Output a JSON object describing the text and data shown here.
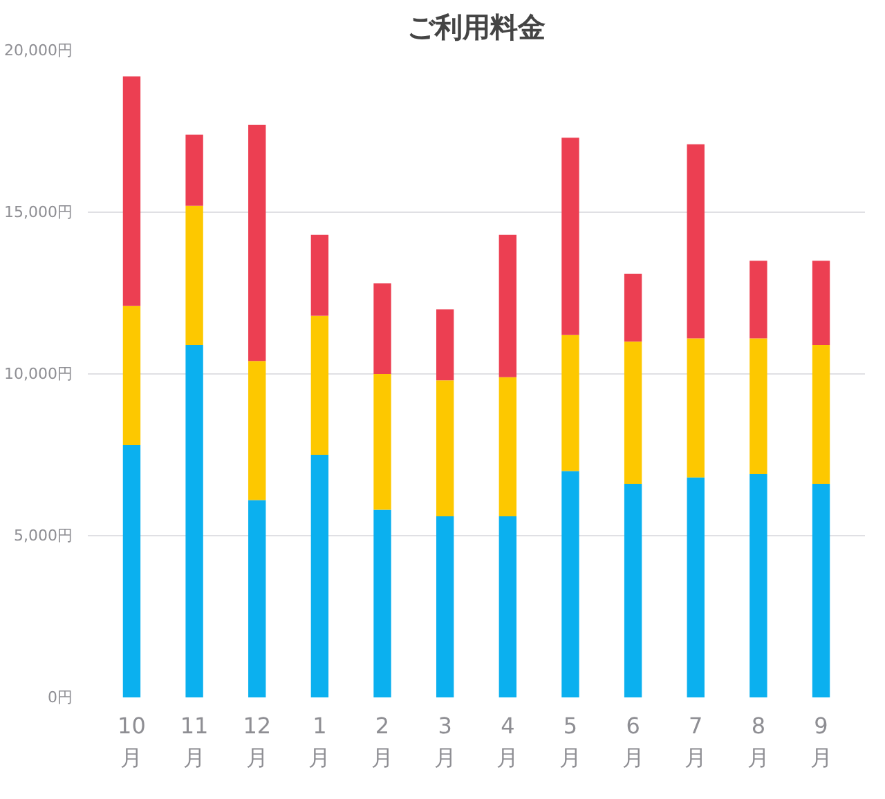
{
  "chart_data": {
    "type": "bar",
    "title": "ご利用料金",
    "stacked": true,
    "categories": [
      "10\n月",
      "11\n月",
      "12\n月",
      "1\n月",
      "2\n月",
      "3\n月",
      "4\n月",
      "5\n月",
      "6\n月",
      "7\n月",
      "8\n月",
      "9\n月"
    ],
    "series": [
      {
        "color": "#0bb0ef",
        "values": [
          7800,
          10900,
          6100,
          7500,
          5800,
          5600,
          5600,
          7000,
          6600,
          6800,
          6900,
          6600
        ]
      },
      {
        "color": "#fdc800",
        "values": [
          4300,
          4300,
          4300,
          4300,
          4200,
          4200,
          4300,
          4200,
          4400,
          4300,
          4200,
          4300
        ]
      },
      {
        "color": "#ec3f52",
        "values": [
          7100,
          2200,
          7300,
          2500,
          2800,
          2200,
          4400,
          6100,
          2100,
          6000,
          2400,
          2600
        ]
      }
    ],
    "ylim": [
      0,
      20000
    ],
    "yticks": [
      {
        "value": 0,
        "label": "0円"
      },
      {
        "value": 5000,
        "label": "5,000円"
      },
      {
        "value": 10000,
        "label": "10,000円"
      },
      {
        "value": 15000,
        "label": "15,000円"
      },
      {
        "value": 20000,
        "label": "20,000円"
      }
    ],
    "grid": "y"
  }
}
